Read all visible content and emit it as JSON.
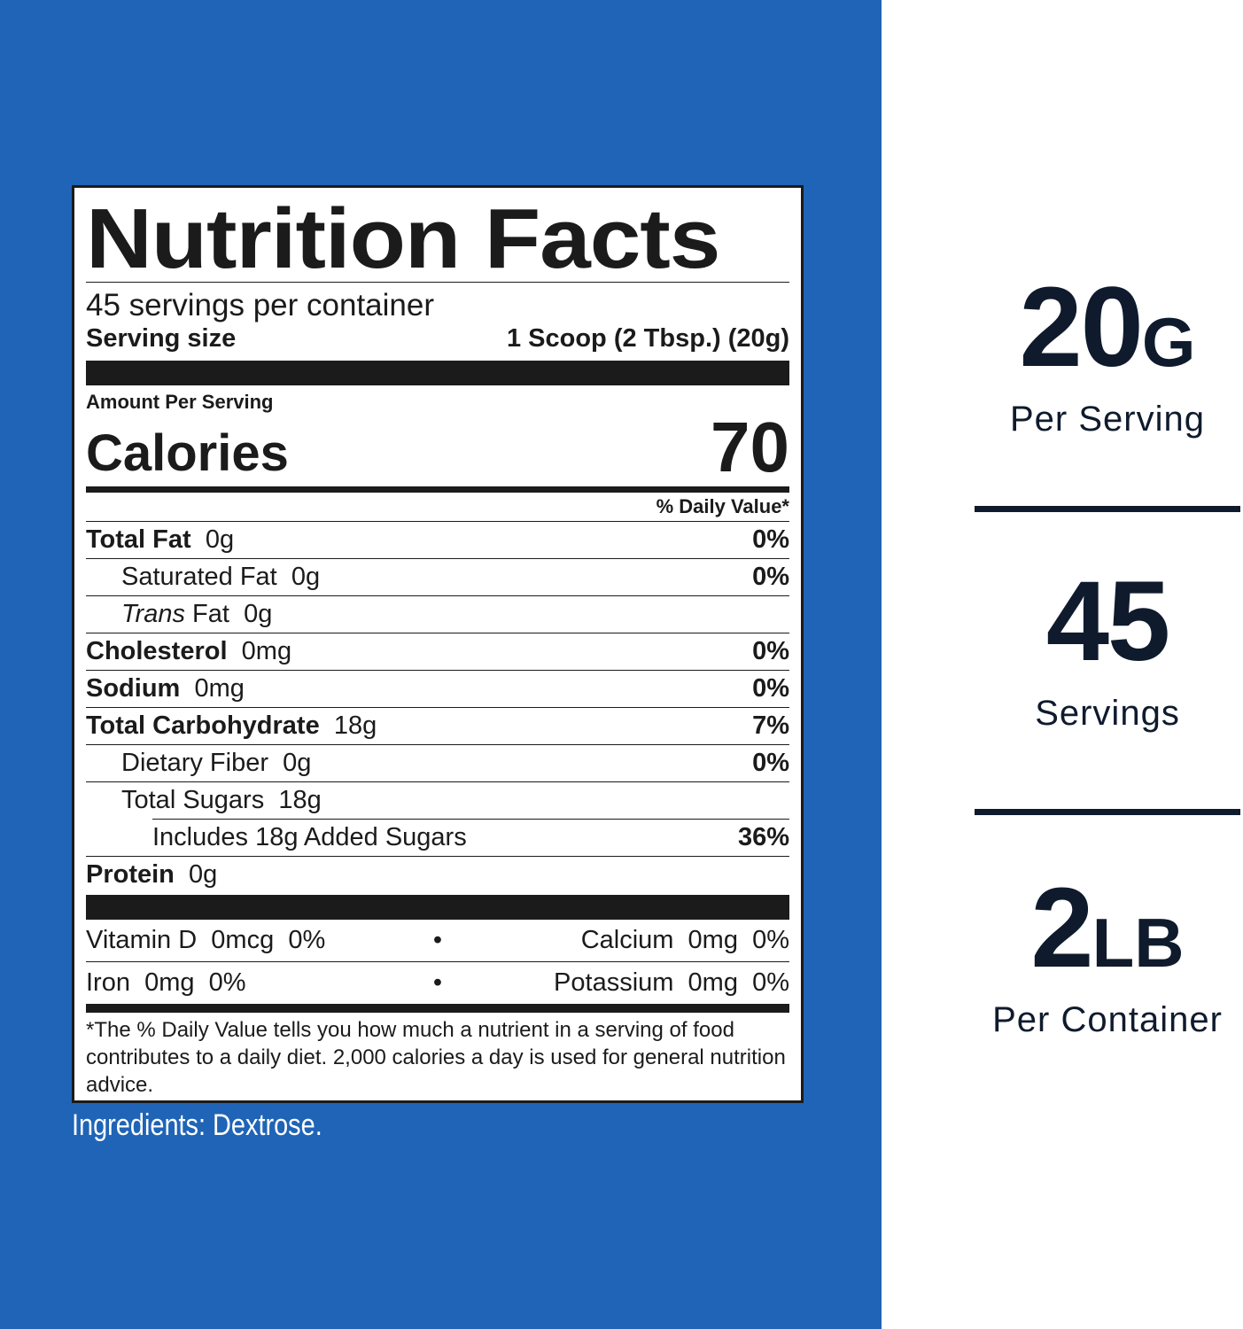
{
  "label": {
    "title": "Nutrition Facts",
    "servings_per_container": "45 servings per container",
    "serving_size_label": "Serving size",
    "serving_size_value": "1 Scoop (2 Tbsp.) (20g)",
    "amount_per_serving": "Amount Per Serving",
    "calories_label": "Calories",
    "calories_value": "70",
    "daily_value_header": "% Daily Value*",
    "nutrients": [
      {
        "name": "Total Fat",
        "amount": "0g",
        "dv": "0%"
      },
      {
        "name": "Saturated Fat",
        "amount": "0g",
        "dv": "0%"
      },
      {
        "name_italic": "Trans",
        "name": "Fat",
        "amount": "0g",
        "dv": ""
      },
      {
        "name": "Cholesterol",
        "amount": "0mg",
        "dv": "0%"
      },
      {
        "name": "Sodium",
        "amount": "0mg",
        "dv": "0%"
      },
      {
        "name": "Total Carbohydrate",
        "amount": "18g",
        "dv": "7%"
      },
      {
        "name": "Dietary Fiber",
        "amount": "0g",
        "dv": "0%"
      },
      {
        "name": "Total Sugars",
        "amount": "18g",
        "dv": ""
      },
      {
        "name": "Includes 18g Added Sugars",
        "amount": "",
        "dv": "36%"
      },
      {
        "name": "Protein",
        "amount": "0g",
        "dv": ""
      }
    ],
    "vitamins": [
      {
        "left": "Vitamin D  0mcg  0%",
        "dot": "•",
        "right": "Calcium  0mg  0%"
      },
      {
        "left": "Iron  0mg  0%",
        "dot": "•",
        "right": "Potassium  0mg  0%"
      }
    ],
    "footnote": "*The % Daily Value tells you how much a nutrient in a serving of food contributes to a daily diet. 2,000 calories a day is used for general nutrition advice."
  },
  "ingredients": "Ingredients: Dextrose.",
  "stats": [
    {
      "value": "20",
      "unit": "G",
      "caption": "Per Serving"
    },
    {
      "value": "45",
      "unit": "",
      "caption": "Servings"
    },
    {
      "value": "2",
      "unit": "LB",
      "caption": "Per Container"
    }
  ],
  "colors": {
    "panel_blue": "#1f64b6",
    "ink": "#1b1b1b",
    "stat_ink": "#0f1b2d"
  }
}
